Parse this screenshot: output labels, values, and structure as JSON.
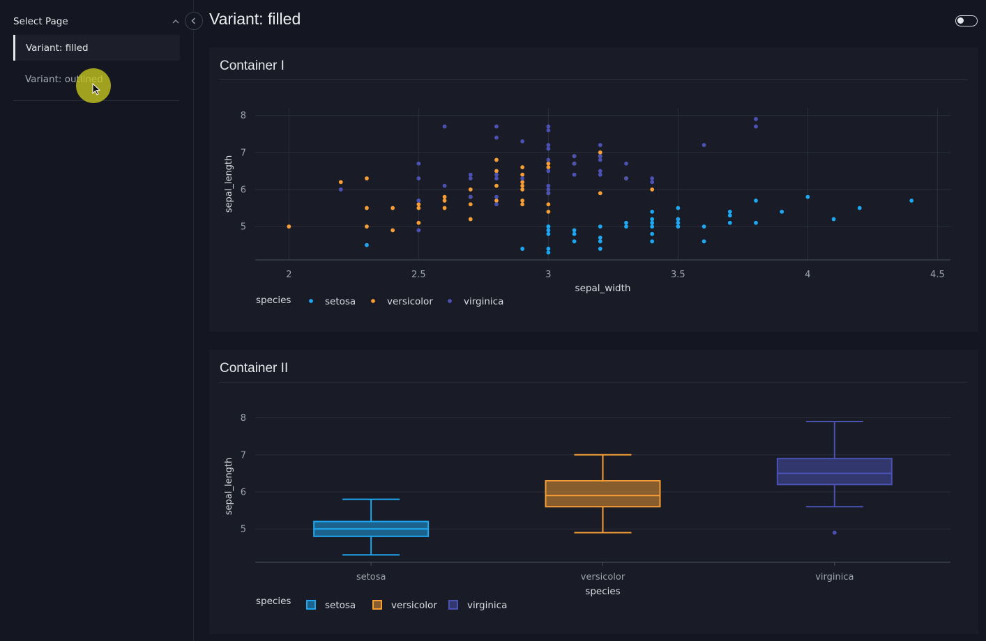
{
  "sidebar": {
    "header": "Select Page",
    "items": [
      {
        "label": "Variant: filled",
        "active": true
      },
      {
        "label": "Variant: outlined",
        "active": false
      }
    ]
  },
  "page": {
    "title": "Variant: filled"
  },
  "icons": {
    "collapse": "chevron-left-icon",
    "accordion": "chevron-up-icon",
    "theme": "toggle-switch-icon",
    "cursor": "mouse-pointer-icon"
  },
  "colors": {
    "background": "#141721",
    "card": "#191c27",
    "setosa": "#1ea8f2",
    "versicolor": "#f79e36",
    "virginica": "#4b52b4"
  },
  "containers": [
    {
      "title": "Container I"
    },
    {
      "title": "Container II"
    }
  ],
  "chart_data": [
    {
      "type": "scatter",
      "xlabel": "sepal_width",
      "ylabel": "sepal_length",
      "xlim": [
        1.87,
        4.55
      ],
      "ylim": [
        4.1,
        8.2
      ],
      "xticks": [
        2,
        2.5,
        3,
        3.5,
        4,
        4.5
      ],
      "xtick_labels": [
        "2",
        "2.5",
        "3",
        "3.5",
        "4",
        "4.5"
      ],
      "yticks": [
        5,
        6,
        7,
        8
      ],
      "ytick_labels": [
        "5",
        "6",
        "7",
        "8"
      ],
      "grid": true,
      "legend_title": "species",
      "legend_position": "bottom-left",
      "series": [
        {
          "name": "setosa",
          "points": [
            [
              2.3,
              4.5
            ],
            [
              2.5,
              5.7
            ],
            [
              2.9,
              4.4
            ],
            [
              3.0,
              5.0
            ],
            [
              3.0,
              4.9
            ],
            [
              3.0,
              4.8
            ],
            [
              3.0,
              4.4
            ],
            [
              3.0,
              4.3
            ],
            [
              3.0,
              5.0
            ],
            [
              3.1,
              4.9
            ],
            [
              3.1,
              4.8
            ],
            [
              3.1,
              4.6
            ],
            [
              3.2,
              5.0
            ],
            [
              3.2,
              4.7
            ],
            [
              3.2,
              4.6
            ],
            [
              3.2,
              4.4
            ],
            [
              3.3,
              5.1
            ],
            [
              3.3,
              5.0
            ],
            [
              3.4,
              5.4
            ],
            [
              3.4,
              5.2
            ],
            [
              3.4,
              5.1
            ],
            [
              3.4,
              5.0
            ],
            [
              3.4,
              4.8
            ],
            [
              3.4,
              4.6
            ],
            [
              3.5,
              5.5
            ],
            [
              3.5,
              5.2
            ],
            [
              3.5,
              5.1
            ],
            [
              3.5,
              5.0
            ],
            [
              3.6,
              5.0
            ],
            [
              3.6,
              4.6
            ],
            [
              3.7,
              5.4
            ],
            [
              3.7,
              5.3
            ],
            [
              3.7,
              5.1
            ],
            [
              3.8,
              5.7
            ],
            [
              3.8,
              5.1
            ],
            [
              3.9,
              5.4
            ],
            [
              4.0,
              5.8
            ],
            [
              4.1,
              5.2
            ],
            [
              4.2,
              5.5
            ],
            [
              4.4,
              5.7
            ]
          ]
        },
        {
          "name": "versicolor",
          "points": [
            [
              2.0,
              5.0
            ],
            [
              2.2,
              6.2
            ],
            [
              2.3,
              6.3
            ],
            [
              2.3,
              5.5
            ],
            [
              2.3,
              5.0
            ],
            [
              2.4,
              5.5
            ],
            [
              2.4,
              4.9
            ],
            [
              2.5,
              5.6
            ],
            [
              2.5,
              5.5
            ],
            [
              2.5,
              5.1
            ],
            [
              2.6,
              5.8
            ],
            [
              2.6,
              5.7
            ],
            [
              2.6,
              5.5
            ],
            [
              2.7,
              6.0
            ],
            [
              2.7,
              5.8
            ],
            [
              2.7,
              5.6
            ],
            [
              2.7,
              5.2
            ],
            [
              2.8,
              6.8
            ],
            [
              2.8,
              6.5
            ],
            [
              2.8,
              6.1
            ],
            [
              2.8,
              5.7
            ],
            [
              2.9,
              6.6
            ],
            [
              2.9,
              6.4
            ],
            [
              2.9,
              6.2
            ],
            [
              2.9,
              6.1
            ],
            [
              2.9,
              6.0
            ],
            [
              2.9,
              5.7
            ],
            [
              2.9,
              5.6
            ],
            [
              3.0,
              6.7
            ],
            [
              3.0,
              6.6
            ],
            [
              3.0,
              5.9
            ],
            [
              3.0,
              5.6
            ],
            [
              3.0,
              5.4
            ],
            [
              3.1,
              6.9
            ],
            [
              3.1,
              6.7
            ],
            [
              3.2,
              7.0
            ],
            [
              3.2,
              6.9
            ],
            [
              3.2,
              5.9
            ],
            [
              3.3,
              6.3
            ],
            [
              3.4,
              6.0
            ]
          ]
        },
        {
          "name": "virginica",
          "points": [
            [
              2.2,
              6.0
            ],
            [
              2.5,
              6.7
            ],
            [
              2.5,
              6.3
            ],
            [
              2.5,
              5.7
            ],
            [
              2.5,
              4.9
            ],
            [
              2.6,
              7.7
            ],
            [
              2.6,
              6.1
            ],
            [
              2.7,
              6.4
            ],
            [
              2.7,
              6.3
            ],
            [
              2.7,
              5.8
            ],
            [
              2.8,
              7.7
            ],
            [
              2.8,
              7.4
            ],
            [
              2.8,
              6.4
            ],
            [
              2.8,
              6.3
            ],
            [
              2.8,
              5.8
            ],
            [
              2.8,
              5.6
            ],
            [
              2.9,
              7.3
            ],
            [
              2.9,
              6.3
            ],
            [
              3.0,
              7.7
            ],
            [
              3.0,
              7.6
            ],
            [
              3.0,
              7.2
            ],
            [
              3.0,
              7.1
            ],
            [
              3.0,
              6.8
            ],
            [
              3.0,
              6.5
            ],
            [
              3.0,
              6.1
            ],
            [
              3.0,
              6.0
            ],
            [
              3.0,
              5.9
            ],
            [
              3.1,
              6.9
            ],
            [
              3.1,
              6.7
            ],
            [
              3.1,
              6.4
            ],
            [
              3.2,
              7.2
            ],
            [
              3.2,
              6.9
            ],
            [
              3.2,
              6.8
            ],
            [
              3.2,
              6.5
            ],
            [
              3.2,
              6.4
            ],
            [
              3.3,
              6.7
            ],
            [
              3.3,
              6.3
            ],
            [
              3.4,
              6.3
            ],
            [
              3.4,
              6.2
            ],
            [
              3.6,
              7.2
            ],
            [
              3.8,
              7.9
            ],
            [
              3.8,
              7.7
            ]
          ]
        }
      ]
    },
    {
      "type": "box",
      "categories": [
        "setosa",
        "versicolor",
        "virginica"
      ],
      "xlabel": "species",
      "ylabel": "sepal_length",
      "ylim": [
        4.1,
        8.2
      ],
      "yticks": [
        5,
        6,
        7,
        8
      ],
      "ytick_labels": [
        "5",
        "6",
        "7",
        "8"
      ],
      "grid": true,
      "legend_title": "species",
      "legend_position": "bottom-left",
      "series": [
        {
          "name": "setosa",
          "min": 4.3,
          "q1": 4.8,
          "median": 5.0,
          "q3": 5.2,
          "max": 5.8,
          "outliers": []
        },
        {
          "name": "versicolor",
          "min": 4.9,
          "q1": 5.6,
          "median": 5.9,
          "q3": 6.3,
          "max": 7.0,
          "outliers": []
        },
        {
          "name": "virginica",
          "min": 5.6,
          "q1": 6.2,
          "median": 6.5,
          "q3": 6.9,
          "max": 7.9,
          "outliers": [
            4.9
          ]
        }
      ]
    }
  ]
}
